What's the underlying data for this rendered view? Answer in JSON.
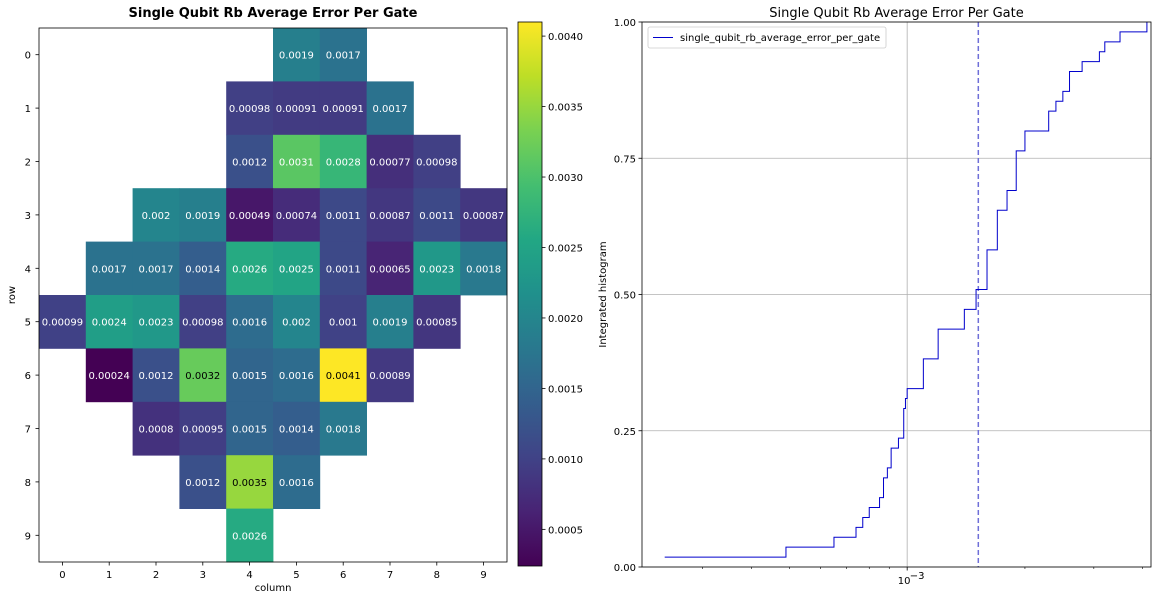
{
  "chart_data": [
    {
      "type": "heatmap",
      "title": "Single Qubit Rb Average Error Per Gate",
      "xlabel": "column",
      "ylabel": "row",
      "x_ticks": [
        "0",
        "1",
        "2",
        "3",
        "4",
        "5",
        "6",
        "7",
        "8",
        "9"
      ],
      "y_ticks": [
        "0",
        "1",
        "2",
        "3",
        "4",
        "5",
        "6",
        "7",
        "8",
        "9"
      ],
      "colormap": "viridis",
      "color_range": [
        0.00024,
        0.0041
      ],
      "colorbar_ticks": [
        {
          "value": 0.0005,
          "label": "0.0005"
        },
        {
          "value": 0.001,
          "label": "0.0010"
        },
        {
          "value": 0.0015,
          "label": "0.0015"
        },
        {
          "value": 0.002,
          "label": "0.0020"
        },
        {
          "value": 0.0025,
          "label": "0.0025"
        },
        {
          "value": 0.003,
          "label": "0.0030"
        },
        {
          "value": 0.0035,
          "label": "0.0035"
        },
        {
          "value": 0.004,
          "label": "0.0040"
        }
      ],
      "cells": [
        {
          "row": 0,
          "col": 5,
          "value": 0.0019,
          "label": "0.0019"
        },
        {
          "row": 0,
          "col": 6,
          "value": 0.0017,
          "label": "0.0017"
        },
        {
          "row": 1,
          "col": 4,
          "value": 0.00098,
          "label": "0.00098"
        },
        {
          "row": 1,
          "col": 5,
          "value": 0.00091,
          "label": "0.00091"
        },
        {
          "row": 1,
          "col": 6,
          "value": 0.00091,
          "label": "0.00091"
        },
        {
          "row": 1,
          "col": 7,
          "value": 0.0017,
          "label": "0.0017"
        },
        {
          "row": 2,
          "col": 4,
          "value": 0.0012,
          "label": "0.0012"
        },
        {
          "row": 2,
          "col": 5,
          "value": 0.0031,
          "label": "0.0031"
        },
        {
          "row": 2,
          "col": 6,
          "value": 0.0028,
          "label": "0.0028"
        },
        {
          "row": 2,
          "col": 7,
          "value": 0.00077,
          "label": "0.00077"
        },
        {
          "row": 2,
          "col": 8,
          "value": 0.00098,
          "label": "0.00098"
        },
        {
          "row": 3,
          "col": 2,
          "value": 0.002,
          "label": "0.002"
        },
        {
          "row": 3,
          "col": 3,
          "value": 0.0019,
          "label": "0.0019"
        },
        {
          "row": 3,
          "col": 4,
          "value": 0.00049,
          "label": "0.00049"
        },
        {
          "row": 3,
          "col": 5,
          "value": 0.00074,
          "label": "0.00074"
        },
        {
          "row": 3,
          "col": 6,
          "value": 0.0011,
          "label": "0.0011"
        },
        {
          "row": 3,
          "col": 7,
          "value": 0.00087,
          "label": "0.00087"
        },
        {
          "row": 3,
          "col": 8,
          "value": 0.0011,
          "label": "0.0011"
        },
        {
          "row": 3,
          "col": 9,
          "value": 0.00087,
          "label": "0.00087"
        },
        {
          "row": 4,
          "col": 1,
          "value": 0.0017,
          "label": "0.0017"
        },
        {
          "row": 4,
          "col": 2,
          "value": 0.0017,
          "label": "0.0017"
        },
        {
          "row": 4,
          "col": 3,
          "value": 0.0014,
          "label": "0.0014"
        },
        {
          "row": 4,
          "col": 4,
          "value": 0.0026,
          "label": "0.0026"
        },
        {
          "row": 4,
          "col": 5,
          "value": 0.0025,
          "label": "0.0025"
        },
        {
          "row": 4,
          "col": 6,
          "value": 0.0011,
          "label": "0.0011"
        },
        {
          "row": 4,
          "col": 7,
          "value": 0.00065,
          "label": "0.00065"
        },
        {
          "row": 4,
          "col": 8,
          "value": 0.0023,
          "label": "0.0023"
        },
        {
          "row": 4,
          "col": 9,
          "value": 0.0018,
          "label": "0.0018"
        },
        {
          "row": 5,
          "col": 0,
          "value": 0.00099,
          "label": "0.00099"
        },
        {
          "row": 5,
          "col": 1,
          "value": 0.0024,
          "label": "0.0024"
        },
        {
          "row": 5,
          "col": 2,
          "value": 0.0023,
          "label": "0.0023"
        },
        {
          "row": 5,
          "col": 3,
          "value": 0.00098,
          "label": "0.00098"
        },
        {
          "row": 5,
          "col": 4,
          "value": 0.0016,
          "label": "0.0016"
        },
        {
          "row": 5,
          "col": 5,
          "value": 0.002,
          "label": "0.002"
        },
        {
          "row": 5,
          "col": 6,
          "value": 0.001,
          "label": "0.001"
        },
        {
          "row": 5,
          "col": 7,
          "value": 0.0019,
          "label": "0.0019"
        },
        {
          "row": 5,
          "col": 8,
          "value": 0.00085,
          "label": "0.00085"
        },
        {
          "row": 6,
          "col": 1,
          "value": 0.00024,
          "label": "0.00024"
        },
        {
          "row": 6,
          "col": 2,
          "value": 0.0012,
          "label": "0.0012"
        },
        {
          "row": 6,
          "col": 3,
          "value": 0.0032,
          "label": "0.0032"
        },
        {
          "row": 6,
          "col": 4,
          "value": 0.0015,
          "label": "0.0015"
        },
        {
          "row": 6,
          "col": 5,
          "value": 0.0016,
          "label": "0.0016"
        },
        {
          "row": 6,
          "col": 6,
          "value": 0.0041,
          "label": "0.0041"
        },
        {
          "row": 6,
          "col": 7,
          "value": 0.00089,
          "label": "0.00089"
        },
        {
          "row": 7,
          "col": 2,
          "value": 0.0008,
          "label": "0.0008"
        },
        {
          "row": 7,
          "col": 3,
          "value": 0.00095,
          "label": "0.00095"
        },
        {
          "row": 7,
          "col": 4,
          "value": 0.0015,
          "label": "0.0015"
        },
        {
          "row": 7,
          "col": 5,
          "value": 0.0014,
          "label": "0.0014"
        },
        {
          "row": 7,
          "col": 6,
          "value": 0.0018,
          "label": "0.0018"
        },
        {
          "row": 8,
          "col": 3,
          "value": 0.0012,
          "label": "0.0012"
        },
        {
          "row": 8,
          "col": 4,
          "value": 0.0035,
          "label": "0.0035"
        },
        {
          "row": 8,
          "col": 5,
          "value": 0.0016,
          "label": "0.0016"
        },
        {
          "row": 9,
          "col": 4,
          "value": 0.0026,
          "label": "0.0026"
        }
      ]
    },
    {
      "type": "line",
      "subtype": "cumulative-step",
      "title": "Single Qubit Rb Average Error Per Gate",
      "xlabel": "",
      "ylabel": "Integrated histogram",
      "x_scale": "log",
      "xlim": [
        0.00021,
        0.0042
      ],
      "ylim": [
        0,
        1
      ],
      "x_tick_labels": [
        {
          "value": 0.001,
          "label": "10",
          "exponent": "−3"
        }
      ],
      "y_tick_labels": [
        "0.00",
        "0.25",
        "0.50",
        "0.75",
        "1.00"
      ],
      "grid": true,
      "legend_position": "upper-left",
      "line_color": "#0000cc",
      "vline": {
        "x": 0.00152,
        "style": "dashed",
        "color": "#6f6fd8"
      },
      "series": [
        {
          "name": "single_qubit_rb_average_error_per_gate",
          "values": [
            0.00024,
            0.00049,
            0.00065,
            0.00074,
            0.00077,
            0.0008,
            0.00085,
            0.00087,
            0.00087,
            0.00089,
            0.00091,
            0.00091,
            0.00095,
            0.00098,
            0.00098,
            0.00098,
            0.00099,
            0.001,
            0.0011,
            0.0011,
            0.0011,
            0.0012,
            0.0012,
            0.0012,
            0.0014,
            0.0014,
            0.0015,
            0.0015,
            0.0016,
            0.0016,
            0.0016,
            0.0016,
            0.0017,
            0.0017,
            0.0017,
            0.0017,
            0.0018,
            0.0018,
            0.0019,
            0.0019,
            0.0019,
            0.0019,
            0.002,
            0.002,
            0.0023,
            0.0023,
            0.0024,
            0.0025,
            0.0026,
            0.0026,
            0.0028,
            0.0031,
            0.0032,
            0.0035,
            0.0041
          ]
        }
      ]
    }
  ]
}
